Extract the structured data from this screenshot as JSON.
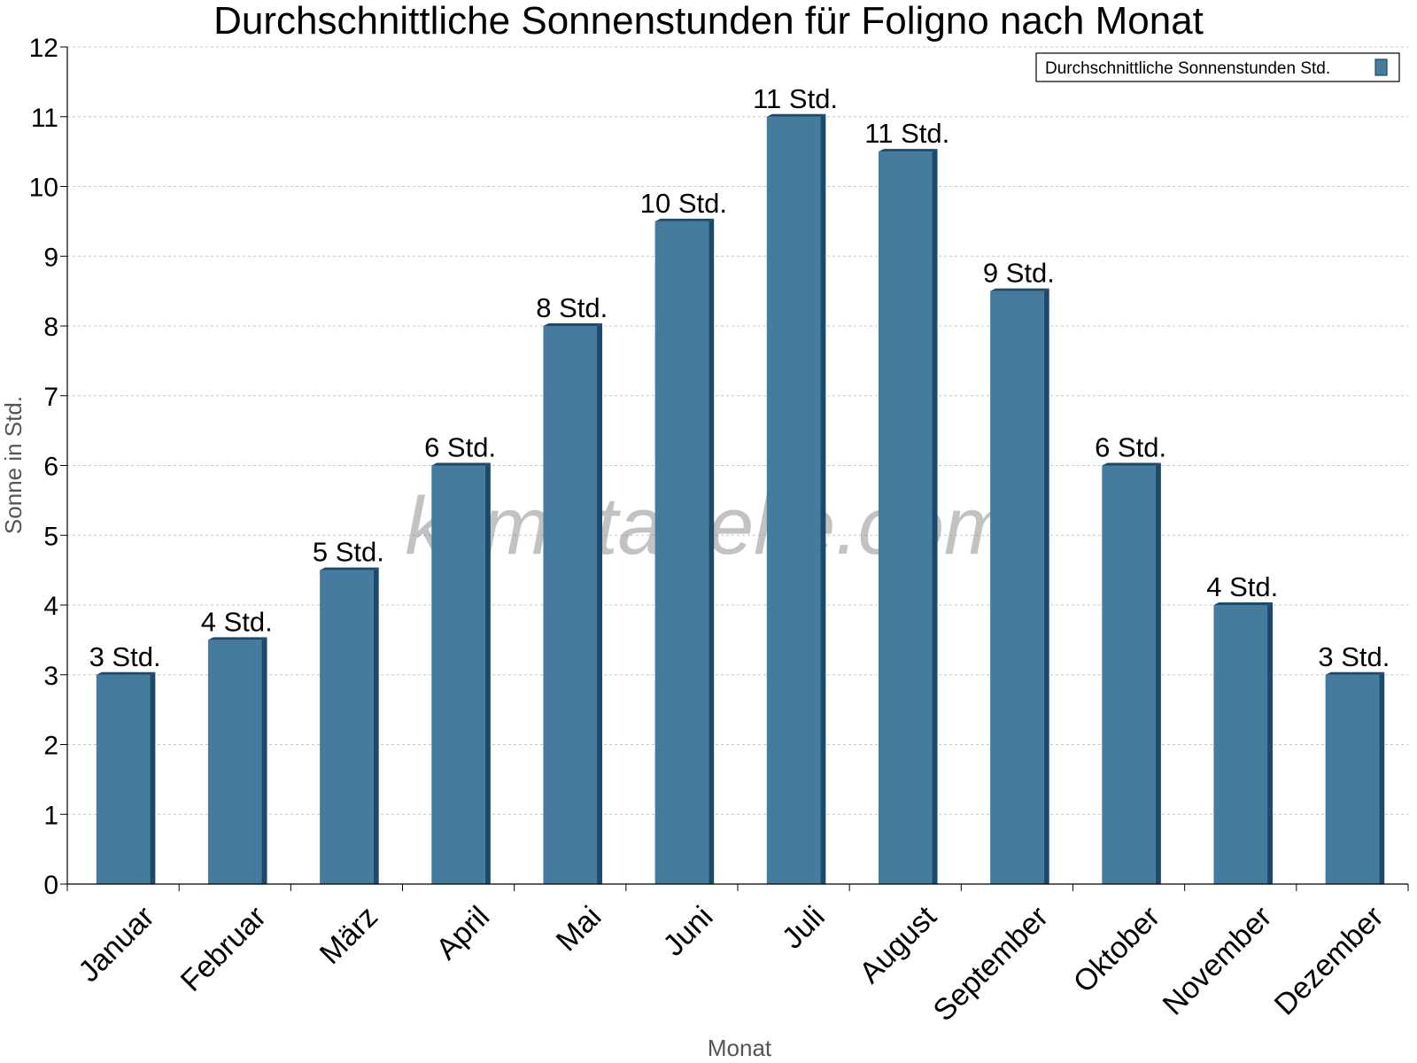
{
  "chart_data": {
    "type": "bar",
    "title": "Durchschnittliche Sonnenstunden für Foligno nach Monat",
    "xlabel": "Monat",
    "ylabel": "Sonne in Std.",
    "ylim": [
      0,
      12
    ],
    "yticks": [
      0,
      1,
      2,
      3,
      4,
      5,
      6,
      7,
      8,
      9,
      10,
      11,
      12
    ],
    "categories": [
      "Januar",
      "Februar",
      "März",
      "April",
      "Mai",
      "Juni",
      "Juli",
      "August",
      "September",
      "Oktober",
      "November",
      "Dezember"
    ],
    "series": [
      {
        "name": "Durchschnittliche Sonnenstunden Std.",
        "values": [
          3,
          3.5,
          4.5,
          6,
          8,
          9.5,
          11,
          10.5,
          8.5,
          6,
          4,
          3
        ],
        "labels": [
          "3 Std.",
          "4 Std.",
          "5 Std.",
          "6 Std.",
          "8 Std.",
          "10 Std.",
          "11 Std.",
          "11 Std.",
          "9 Std.",
          "6 Std.",
          "4 Std.",
          "3 Std."
        ]
      }
    ],
    "grid": true,
    "legend_position": "top-right",
    "watermark": "klimatabelle.com",
    "colors": {
      "bar": "#457b9d",
      "bar_side": "#1d4a6a",
      "bar_top": "#1d4a6a"
    }
  }
}
